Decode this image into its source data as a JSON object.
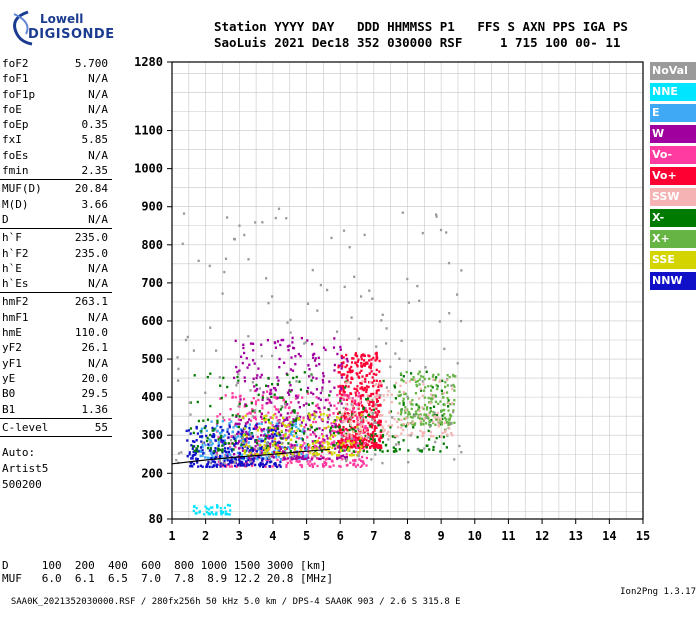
{
  "logo": {
    "line1": "Lowell",
    "line2": "DIGISONDE"
  },
  "header": {
    "line1": "Station YYYY DAY   DDD HHMMSS P1   FFS S AXN PPS IGA PS",
    "line2": "SaoLuis 2021 Dec18 352 030000 RSF     1 715 100 00- 11"
  },
  "params": [
    {
      "k": "foF2",
      "v": "5.700"
    },
    {
      "k": "foF1",
      "v": "N/A"
    },
    {
      "k": "foF1p",
      "v": "N/A"
    },
    {
      "k": "foE",
      "v": "N/A"
    },
    {
      "k": "foEp",
      "v": "0.35"
    },
    {
      "k": "fxI",
      "v": "5.85"
    },
    {
      "k": "foEs",
      "v": "N/A"
    },
    {
      "k": "fmin",
      "v": "2.35"
    },
    {
      "sep": true
    },
    {
      "k": "MUF(D)",
      "v": "20.84"
    },
    {
      "k": "M(D)",
      "v": "3.66"
    },
    {
      "k": "D",
      "v": "N/A"
    },
    {
      "sep": true
    },
    {
      "k": "h`F",
      "v": "235.0"
    },
    {
      "k": "h`F2",
      "v": "235.0"
    },
    {
      "k": "h`E",
      "v": "N/A"
    },
    {
      "k": "h`Es",
      "v": "N/A"
    },
    {
      "sep": true
    },
    {
      "k": "hmF2",
      "v": "263.1"
    },
    {
      "k": "hmF1",
      "v": "N/A"
    },
    {
      "k": "hmE",
      "v": "110.0"
    },
    {
      "k": "yF2",
      "v": "26.1"
    },
    {
      "k": "yF1",
      "v": "N/A"
    },
    {
      "k": "yE",
      "v": "20.0"
    },
    {
      "k": "B0",
      "v": "29.5"
    },
    {
      "k": "B1",
      "v": "1.36"
    },
    {
      "sep": true
    },
    {
      "k": "C-level",
      "v": "55"
    },
    {
      "sep": true
    }
  ],
  "autoscale": {
    "line1": "Auto:",
    "line2": "Artist5",
    "line3": "500200"
  },
  "legend": [
    {
      "label": "NoVal",
      "color": "#9a9a9a"
    },
    {
      "label": "NNE",
      "color": "#00e5ff"
    },
    {
      "label": "E",
      "color": "#3fa9f5"
    },
    {
      "label": "W",
      "color": "#a0009e"
    },
    {
      "label": "Vo-",
      "color": "#ff3aa0"
    },
    {
      "label": "Vo+",
      "color": "#ff0033"
    },
    {
      "label": "SSW",
      "color": "#f5b3b3"
    },
    {
      "label": "X-",
      "color": "#007a00"
    },
    {
      "label": "X+",
      "color": "#66b544"
    },
    {
      "label": "SSE",
      "color": "#d4d400"
    },
    {
      "label": "NNW",
      "color": "#1010c8"
    }
  ],
  "muf_table": {
    "line1": "D     100  200  400  600  800 1000 1500 3000 [km]",
    "line2": "MUF   6.0  6.1  6.5  7.0  7.8  8.9 12.2 20.8 [MHz]"
  },
  "footer": {
    "left": "SAA0K_2021352030000.RSF / 280fx256h 50 kHz 5.0 km / DPS-4 SAA0K 903 / 2.6 S 315.8 E",
    "right": "Ion2Png 1.3.17"
  },
  "chart_data": {
    "type": "scatter",
    "xlim": [
      1,
      15
    ],
    "ylim": [
      80,
      1280
    ],
    "x_ticks": [
      1,
      2,
      3,
      4,
      5,
      6,
      7,
      8,
      9,
      10,
      11,
      12,
      13,
      14,
      15
    ],
    "y_ticks": [
      80,
      200,
      300,
      400,
      500,
      600,
      700,
      800,
      900,
      1000,
      1100,
      1280
    ],
    "grid": true,
    "legend_position": "right",
    "echo_clusters": [
      {
        "series": "Vo+",
        "x": [
          5.9,
          7.2
        ],
        "y": [
          270,
          520
        ],
        "n": 500
      },
      {
        "series": "Vo-",
        "x": [
          2.3,
          6.8
        ],
        "y": [
          220,
          420
        ],
        "n": 450
      },
      {
        "series": "E",
        "x": [
          1.8,
          5.0
        ],
        "y": [
          240,
          340
        ],
        "n": 220
      },
      {
        "series": "W",
        "x": [
          2.8,
          6.2
        ],
        "y": [
          240,
          560
        ],
        "n": 350
      },
      {
        "series": "NNW",
        "x": [
          1.4,
          4.2
        ],
        "y": [
          220,
          330
        ],
        "n": 260
      },
      {
        "series": "X-",
        "x": [
          1.5,
          9.2
        ],
        "y": [
          260,
          470
        ],
        "n": 280
      },
      {
        "series": "X+",
        "x": [
          7.7,
          9.4
        ],
        "y": [
          330,
          470
        ],
        "n": 180
      },
      {
        "series": "SSE",
        "x": [
          3.0,
          6.6
        ],
        "y": [
          250,
          360
        ],
        "n": 170
      },
      {
        "series": "SSW",
        "x": [
          6.0,
          9.3
        ],
        "y": [
          300,
          450
        ],
        "n": 150
      },
      {
        "series": "NNE",
        "x": [
          1.6,
          2.7
        ],
        "y": [
          95,
          120
        ],
        "n": 45
      },
      {
        "series": "NoVal",
        "x": [
          1.0,
          9.6
        ],
        "y": [
          230,
          900
        ],
        "n": 180
      }
    ],
    "profile_trace": {
      "x": [
        1.0,
        2.0,
        3.0,
        4.0,
        5.0,
        5.7
      ],
      "y": [
        225,
        235,
        243,
        250,
        258,
        263.1
      ]
    }
  }
}
